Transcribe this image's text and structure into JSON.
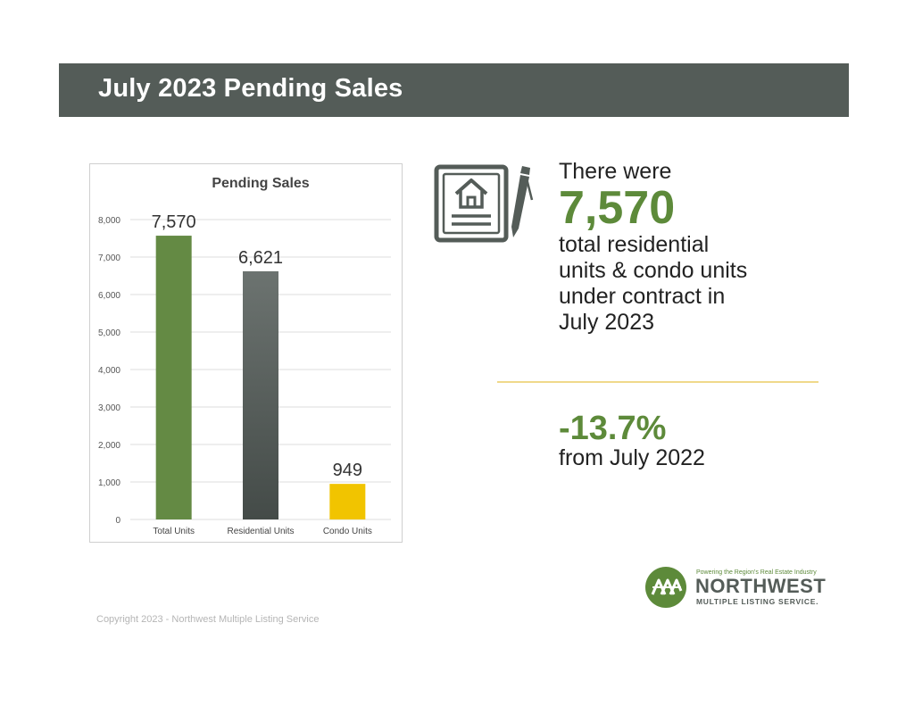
{
  "header": {
    "title": "July 2023 Pending Sales"
  },
  "chart_data": {
    "type": "bar",
    "title": "Pending Sales",
    "categories": [
      "Total Units",
      "Residential Units",
      "Condo Units"
    ],
    "values": [
      7570,
      6621,
      949
    ],
    "data_labels": [
      "7,570",
      "6,621",
      "949"
    ],
    "colors": [
      "#648a44",
      "#5f6663",
      "#f1c400"
    ],
    "xlabel": "",
    "ylabel": "",
    "ylim": [
      0,
      8000
    ],
    "yticks": [
      0,
      1000,
      2000,
      3000,
      4000,
      5000,
      6000,
      7000,
      8000
    ],
    "ytick_labels": [
      "0",
      "1,000",
      "2,000",
      "3,000",
      "4,000",
      "5,000",
      "6,000",
      "7,000",
      "8,000"
    ],
    "grid": true,
    "legend": "none"
  },
  "summary": {
    "intro": "There were",
    "total": "7,570",
    "description_lines": [
      "total residential",
      "units & condo units",
      "under contract in",
      "July 2023"
    ],
    "change_value": "-13.7%",
    "change_label": "from July 2022"
  },
  "footer": {
    "copyright": "Copyright 2023 - Northwest Multiple Listing Service"
  },
  "logo": {
    "tagline": "Powering the Region's Real Estate Industry",
    "name": "NORTHWEST",
    "subname": "MULTIPLE LISTING SERVICE."
  },
  "icons": {
    "document": "house-document-icon",
    "pencil": "pencil-icon"
  }
}
